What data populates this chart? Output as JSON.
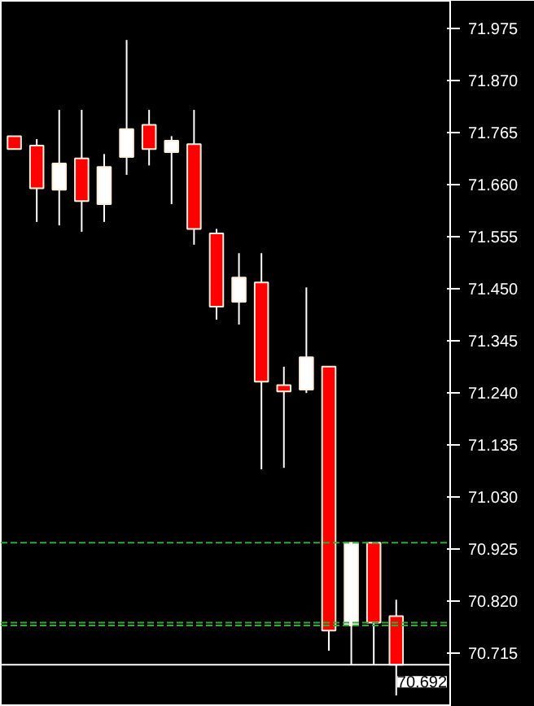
{
  "chart_data": {
    "type": "candlestick",
    "categories": [
      null,
      null,
      null,
      null,
      null,
      null,
      null,
      null,
      null,
      null,
      null,
      null,
      null,
      null,
      null,
      null,
      null,
      null
    ],
    "ohlc": [
      [
        71.758,
        71.758,
        71.732,
        71.732
      ],
      [
        71.739,
        71.752,
        71.585,
        71.653
      ],
      [
        71.65,
        71.811,
        71.578,
        71.703
      ],
      [
        71.713,
        71.811,
        71.565,
        71.627
      ],
      [
        71.621,
        71.722,
        71.585,
        71.696
      ],
      [
        71.716,
        71.952,
        71.68,
        71.772
      ],
      [
        71.781,
        71.811,
        71.699,
        71.732
      ],
      [
        71.726,
        71.758,
        71.621,
        71.749
      ],
      [
        71.742,
        71.811,
        71.539,
        71.571
      ],
      [
        71.562,
        71.571,
        71.388,
        71.414
      ],
      [
        71.424,
        71.522,
        71.378,
        71.473
      ],
      [
        71.463,
        71.522,
        71.086,
        71.263
      ],
      [
        71.256,
        71.293,
        71.089,
        71.243
      ],
      [
        71.247,
        71.453,
        71.24,
        71.312
      ],
      [
        71.293,
        71.293,
        70.72,
        70.761
      ],
      [
        70.771,
        70.938,
        70.692,
        70.938
      ],
      [
        70.938,
        70.938,
        70.692,
        70.777
      ],
      [
        70.79,
        70.823,
        70.63,
        70.692
      ]
    ],
    "colors": [
      "#ff0000",
      "#ff0000",
      "#ffffff",
      "#ff0000",
      "#ffffff",
      "#ffffff",
      "#ff0000",
      "#ffffff",
      "#ff0000",
      "#ff0000",
      "#ffffff",
      "#ff0000",
      "#ff0000",
      "#ffffff",
      "#ff0000",
      "#ffffff",
      "#ff0000",
      "#ff0000"
    ],
    "ylim": [
      70.607,
      72.031
    ],
    "yticks": [
      {
        "value": 71.975,
        "label": "71.975"
      },
      {
        "value": 71.87,
        "label": "71.870"
      },
      {
        "value": 71.765,
        "label": "71.765"
      },
      {
        "value": 71.66,
        "label": "71.660"
      },
      {
        "value": 71.555,
        "label": "71.555"
      },
      {
        "value": 71.45,
        "label": "71.450"
      },
      {
        "value": 71.345,
        "label": "71.345"
      },
      {
        "value": 71.24,
        "label": "71.240"
      },
      {
        "value": 71.135,
        "label": "71.135"
      },
      {
        "value": 71.03,
        "label": "71.030"
      },
      {
        "value": 70.925,
        "label": "70.925"
      },
      {
        "value": 70.82,
        "label": "70.820"
      },
      {
        "value": 70.715,
        "label": "70.715"
      }
    ],
    "ref_lines": [
      {
        "axis": "y",
        "value": 70.938,
        "color": "#33aa33",
        "line_style": "dashed"
      },
      {
        "axis": "y",
        "value": 70.777,
        "color": "#33aa33",
        "line_style": "dashed"
      },
      {
        "axis": "y",
        "value": 70.771,
        "color": "#33aa33",
        "line_style": "dashed"
      },
      {
        "axis": "y",
        "value": 70.692,
        "label": "70.692",
        "color": "#ffffff",
        "line_style": "solid"
      }
    ],
    "grid": false
  }
}
